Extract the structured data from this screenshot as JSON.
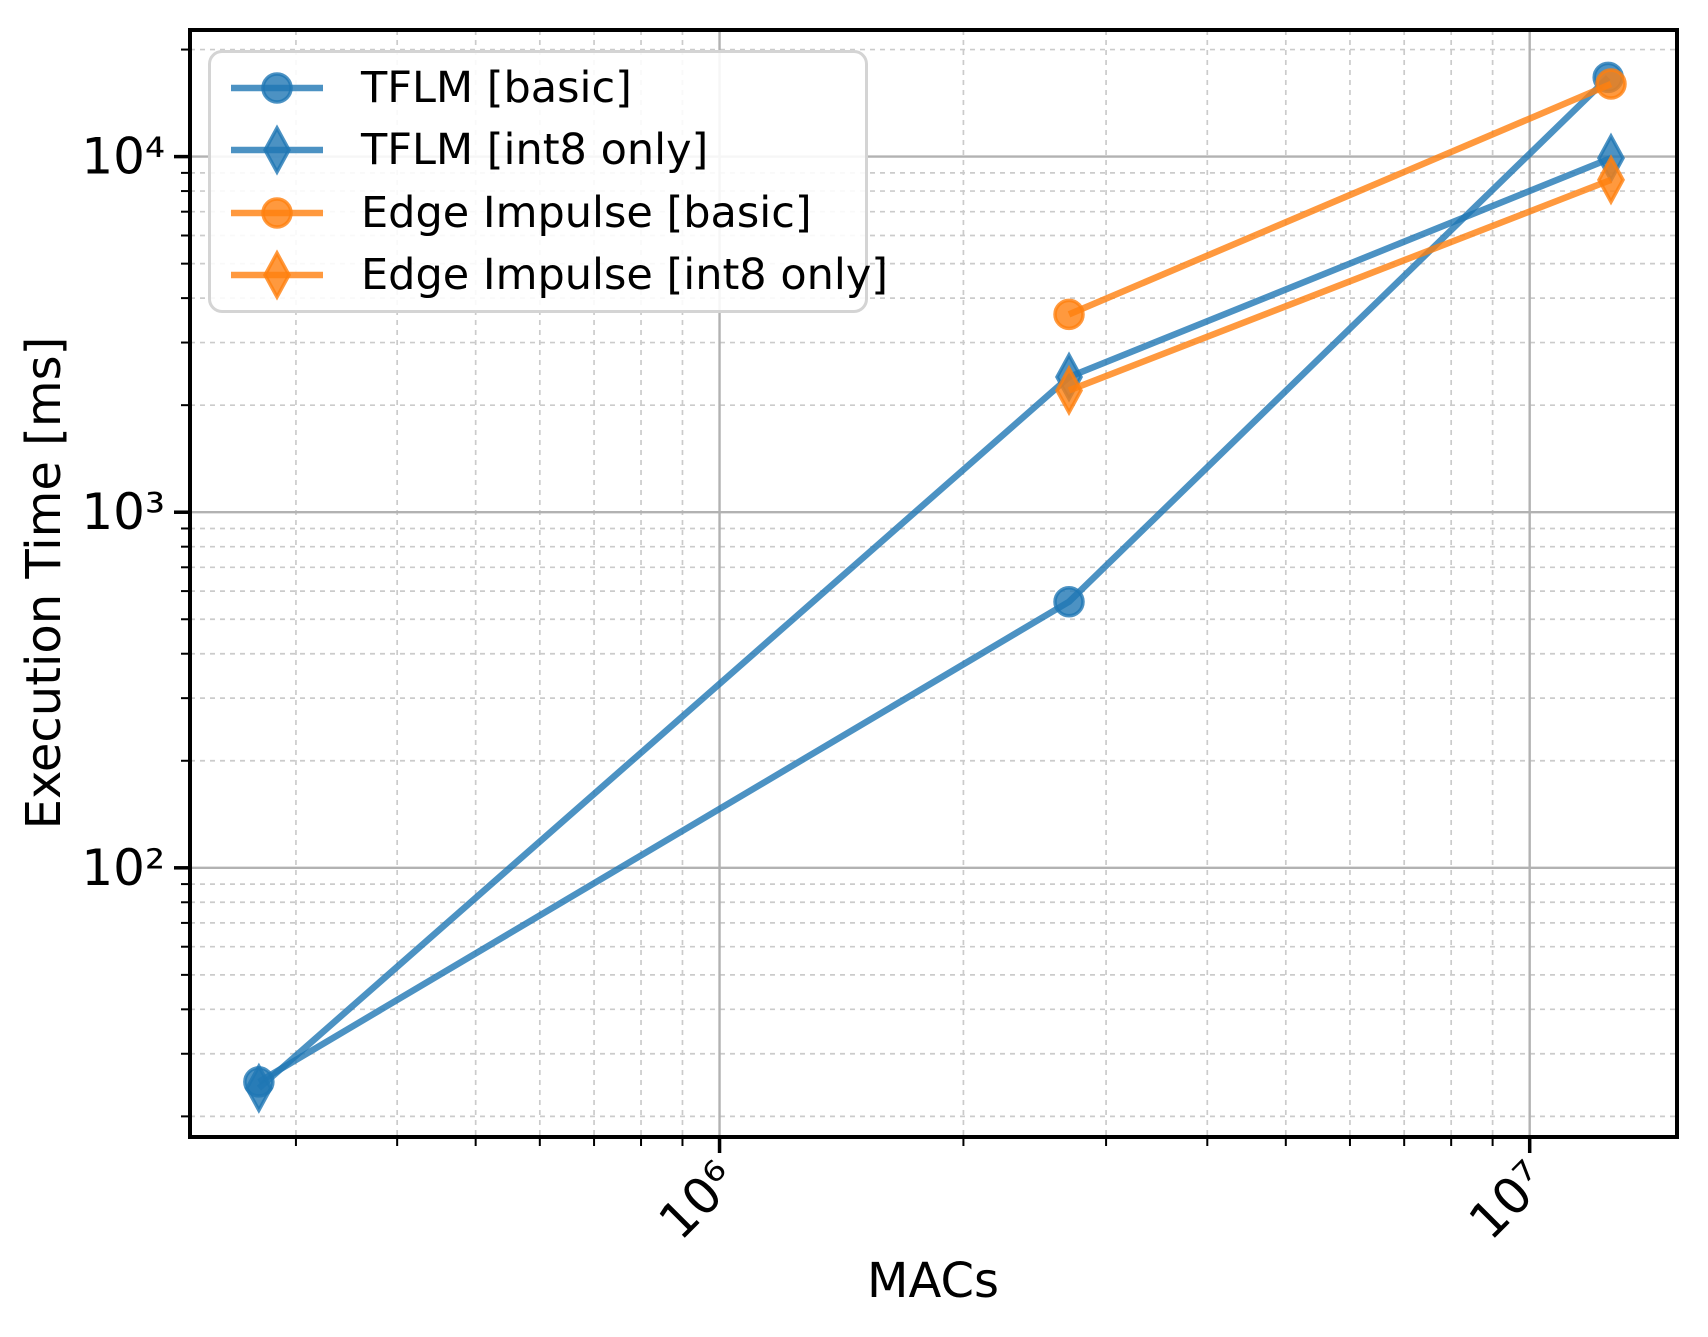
{
  "chart_data": {
    "type": "line",
    "title": "",
    "xlabel": "MACs",
    "ylabel": "Execution Time [ms]",
    "xscale": "log",
    "yscale": "log",
    "xlim": [
      222000,
      15200000
    ],
    "ylim": [
      17.5,
      22700
    ],
    "x_ticks": [
      {
        "value": 1000000,
        "label": "10⁶"
      },
      {
        "value": 10000000,
        "label": "10⁷"
      }
    ],
    "y_ticks": [
      {
        "value": 100,
        "label": "10²"
      },
      {
        "value": 1000,
        "label": "10³"
      },
      {
        "value": 10000,
        "label": "10⁴"
      }
    ],
    "grid": {
      "major": true,
      "minor": true,
      "major_color": "#b2b2b2",
      "minor_color": "#cbcbcb"
    },
    "legend_position": "upper left",
    "series": [
      {
        "name": "TFLM [basic]",
        "marker": "circle",
        "color": "#1f77b4",
        "alpha": 0.8,
        "x": [
          270000,
          2700000,
          12500000
        ],
        "y": [
          25,
          560,
          16700
        ]
      },
      {
        "name": "TFLM [int8 only]",
        "marker": "diamond",
        "color": "#1f77b4",
        "alpha": 0.8,
        "x": [
          270000,
          2700000,
          12600000
        ],
        "y": [
          24,
          2400,
          9900
        ]
      },
      {
        "name": "Edge Impulse [basic]",
        "marker": "circle",
        "color": "#ff7f0e",
        "alpha": 0.8,
        "x": [
          2700000,
          12600000
        ],
        "y": [
          3600,
          16000
        ]
      },
      {
        "name": "Edge Impulse [int8 only]",
        "marker": "diamond",
        "color": "#ff7f0e",
        "alpha": 0.8,
        "x": [
          2700000,
          12600000
        ],
        "y": [
          2200,
          8600
        ]
      }
    ]
  }
}
